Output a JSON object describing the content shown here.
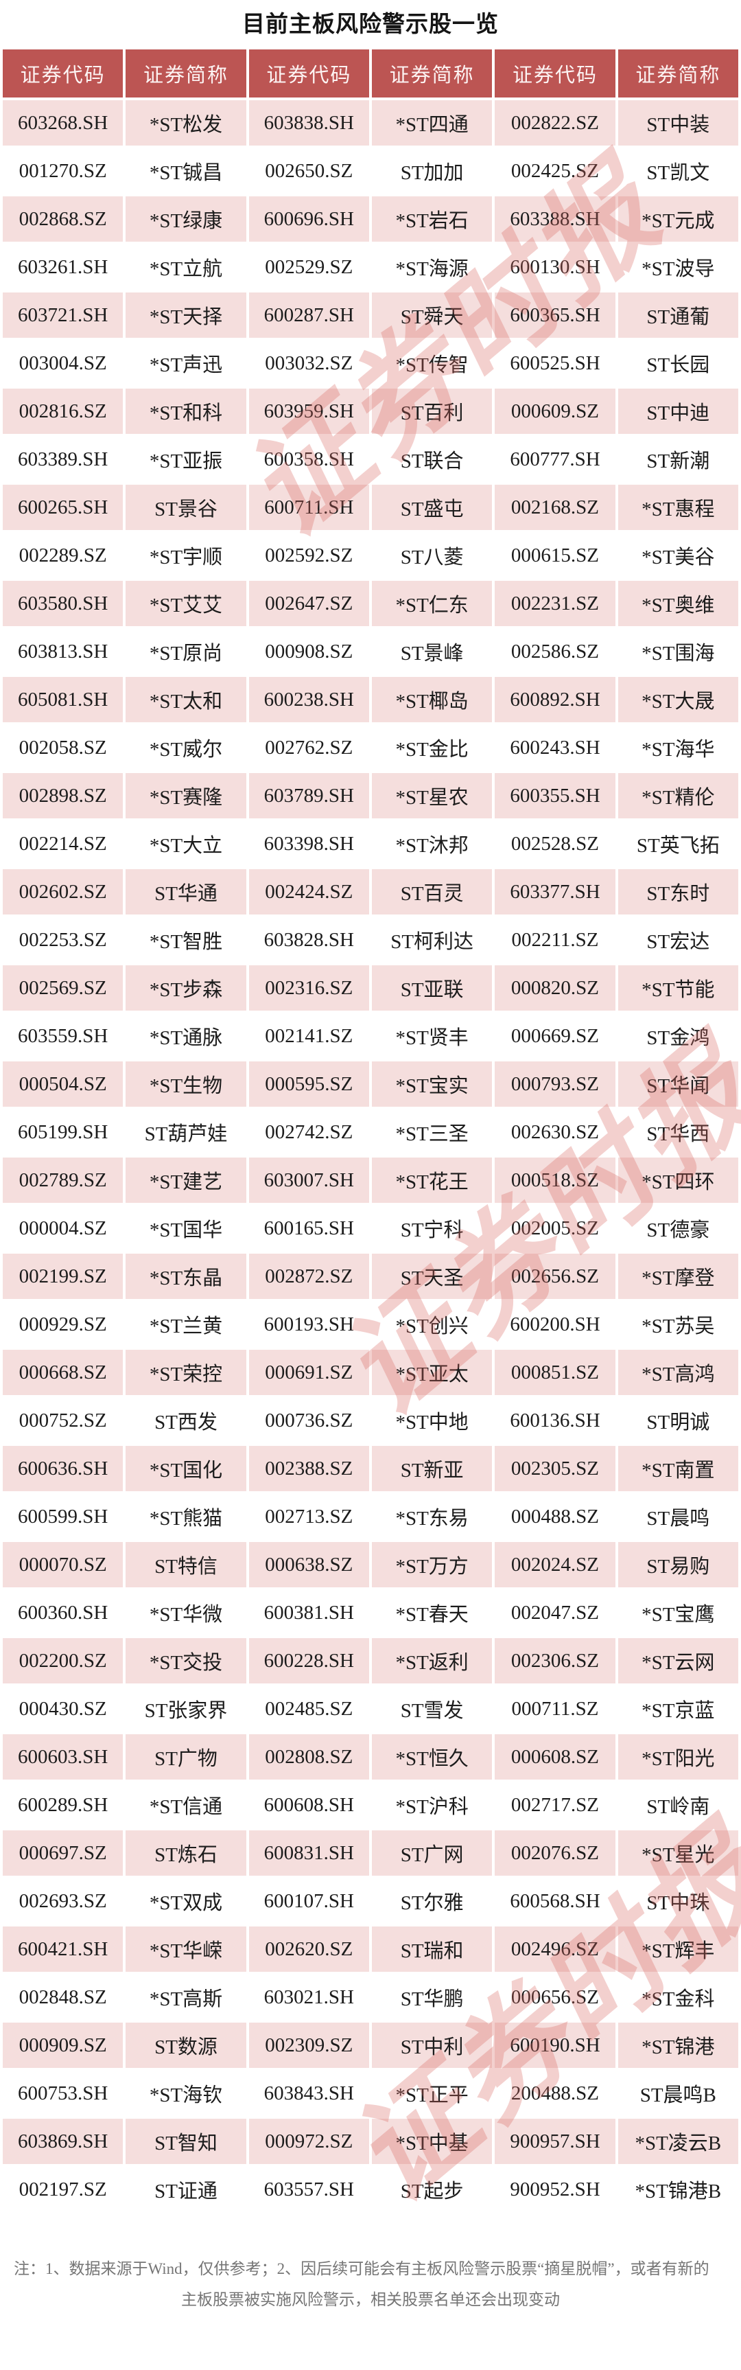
{
  "chart_data": {
    "type": "table",
    "title": "目前主板风险警示股一览",
    "columns": [
      "证券代码",
      "证券简称",
      "证券代码",
      "证券简称",
      "证券代码",
      "证券简称"
    ],
    "rows": [
      [
        "603268.SH",
        "*ST松发",
        "603838.SH",
        "*ST四通",
        "002822.SZ",
        "ST中装"
      ],
      [
        "001270.SZ",
        "*ST铖昌",
        "002650.SZ",
        "ST加加",
        "002425.SZ",
        "ST凯文"
      ],
      [
        "002868.SZ",
        "*ST绿康",
        "600696.SH",
        "*ST岩石",
        "603388.SH",
        "*ST元成"
      ],
      [
        "603261.SH",
        "*ST立航",
        "002529.SZ",
        "*ST海源",
        "600130.SH",
        "*ST波导"
      ],
      [
        "603721.SH",
        "*ST天择",
        "600287.SH",
        "ST舜天",
        "600365.SH",
        "ST通葡"
      ],
      [
        "003004.SZ",
        "*ST声迅",
        "003032.SZ",
        "*ST传智",
        "600525.SH",
        "ST长园"
      ],
      [
        "002816.SZ",
        "*ST和科",
        "603959.SH",
        "ST百利",
        "000609.SZ",
        "ST中迪"
      ],
      [
        "603389.SH",
        "*ST亚振",
        "600358.SH",
        "ST联合",
        "600777.SH",
        "ST新潮"
      ],
      [
        "600265.SH",
        "ST景谷",
        "600711.SH",
        "ST盛屯",
        "002168.SZ",
        "*ST惠程"
      ],
      [
        "002289.SZ",
        "*ST宇顺",
        "002592.SZ",
        "ST八菱",
        "000615.SZ",
        "*ST美谷"
      ],
      [
        "603580.SH",
        "*ST艾艾",
        "002647.SZ",
        "*ST仁东",
        "002231.SZ",
        "*ST奥维"
      ],
      [
        "603813.SH",
        "*ST原尚",
        "000908.SZ",
        "ST景峰",
        "002586.SZ",
        "*ST围海"
      ],
      [
        "605081.SH",
        "*ST太和",
        "600238.SH",
        "*ST椰岛",
        "600892.SH",
        "*ST大晟"
      ],
      [
        "002058.SZ",
        "*ST威尔",
        "002762.SZ",
        "*ST金比",
        "600243.SH",
        "*ST海华"
      ],
      [
        "002898.SZ",
        "*ST赛隆",
        "603789.SH",
        "*ST星农",
        "600355.SH",
        "*ST精伦"
      ],
      [
        "002214.SZ",
        "*ST大立",
        "603398.SH",
        "*ST沐邦",
        "002528.SZ",
        "ST英飞拓"
      ],
      [
        "002602.SZ",
        "ST华通",
        "002424.SZ",
        "ST百灵",
        "603377.SH",
        "ST东时"
      ],
      [
        "002253.SZ",
        "*ST智胜",
        "603828.SH",
        "ST柯利达",
        "002211.SZ",
        "ST宏达"
      ],
      [
        "002569.SZ",
        "*ST步森",
        "002316.SZ",
        "ST亚联",
        "000820.SZ",
        "*ST节能"
      ],
      [
        "603559.SH",
        "*ST通脉",
        "002141.SZ",
        "*ST贤丰",
        "000669.SZ",
        "ST金鸿"
      ],
      [
        "000504.SZ",
        "*ST生物",
        "000595.SZ",
        "*ST宝实",
        "000793.SZ",
        "ST华闻"
      ],
      [
        "605199.SH",
        "ST葫芦娃",
        "002742.SZ",
        "*ST三圣",
        "002630.SZ",
        "ST华西"
      ],
      [
        "002789.SZ",
        "*ST建艺",
        "603007.SH",
        "*ST花王",
        "000518.SZ",
        "*ST四环"
      ],
      [
        "000004.SZ",
        "*ST国华",
        "600165.SH",
        "ST宁科",
        "002005.SZ",
        "ST德豪"
      ],
      [
        "002199.SZ",
        "*ST东晶",
        "002872.SZ",
        "ST天圣",
        "002656.SZ",
        "*ST摩登"
      ],
      [
        "000929.SZ",
        "*ST兰黄",
        "600193.SH",
        "*ST创兴",
        "600200.SH",
        "*ST苏吴"
      ],
      [
        "000668.SZ",
        "*ST荣控",
        "000691.SZ",
        "*ST亚太",
        "000851.SZ",
        "*ST高鸿"
      ],
      [
        "000752.SZ",
        "ST西发",
        "000736.SZ",
        "*ST中地",
        "600136.SH",
        "ST明诚"
      ],
      [
        "600636.SH",
        "*ST国化",
        "002388.SZ",
        "ST新亚",
        "002305.SZ",
        "*ST南置"
      ],
      [
        "600599.SH",
        "*ST熊猫",
        "002713.SZ",
        "*ST东易",
        "000488.SZ",
        "ST晨鸣"
      ],
      [
        "000070.SZ",
        "ST特信",
        "000638.SZ",
        "*ST万方",
        "002024.SZ",
        "ST易购"
      ],
      [
        "600360.SH",
        "*ST华微",
        "600381.SH",
        "*ST春天",
        "002047.SZ",
        "*ST宝鹰"
      ],
      [
        "002200.SZ",
        "*ST交投",
        "600228.SH",
        "*ST返利",
        "002306.SZ",
        "*ST云网"
      ],
      [
        "000430.SZ",
        "ST张家界",
        "002485.SZ",
        "ST雪发",
        "000711.SZ",
        "*ST京蓝"
      ],
      [
        "600603.SH",
        "ST广物",
        "002808.SZ",
        "*ST恒久",
        "000608.SZ",
        "*ST阳光"
      ],
      [
        "600289.SH",
        "*ST信通",
        "600608.SH",
        "*ST沪科",
        "002717.SZ",
        "ST岭南"
      ],
      [
        "000697.SZ",
        "ST炼石",
        "600831.SH",
        "ST广网",
        "002076.SZ",
        "*ST星光"
      ],
      [
        "002693.SZ",
        "*ST双成",
        "600107.SH",
        "ST尔雅",
        "600568.SH",
        "ST中珠"
      ],
      [
        "600421.SH",
        "*ST华嵘",
        "002620.SZ",
        "ST瑞和",
        "002496.SZ",
        "*ST辉丰"
      ],
      [
        "002848.SZ",
        "*ST高斯",
        "603021.SH",
        "ST华鹏",
        "000656.SZ",
        "*ST金科"
      ],
      [
        "000909.SZ",
        "ST数源",
        "002309.SZ",
        "ST中利",
        "600190.SH",
        "*ST锦港"
      ],
      [
        "600753.SH",
        "*ST海钦",
        "603843.SH",
        "*ST正平",
        "200488.SZ",
        "ST晨鸣B"
      ],
      [
        "603869.SH",
        "ST智知",
        "000972.SZ",
        "*ST中基",
        "900957.SH",
        "*ST凌云B"
      ],
      [
        "002197.SZ",
        "ST证通",
        "603557.SH",
        "ST起步",
        "900952.SH",
        "*ST锦港B"
      ]
    ],
    "layout_hints": {
      "grid": "white 4px gaps between cells",
      "striping": "odd data rows pink, even data rows white",
      "columns_equal_width": true
    }
  },
  "footer": {
    "line1": "注：1、数据来源于Wind，仅供参考；2、因后续可能会有主板风险警示股票“摘星脱帽”，或者有新的",
    "line2": "主板股票被实施风险警示，相关股票名单还会出现变动"
  },
  "watermark": {
    "text": "证券时报"
  },
  "colors": {
    "header_bg": "#bc5553",
    "header_text": "#fdf4f3",
    "row_alt_bg": "#f5dedd",
    "cell_text": "#1c1c1c",
    "title_text": "#151515",
    "footer_text": "#757575",
    "watermark": "#d96560",
    "page_bg": "#ffffff"
  }
}
